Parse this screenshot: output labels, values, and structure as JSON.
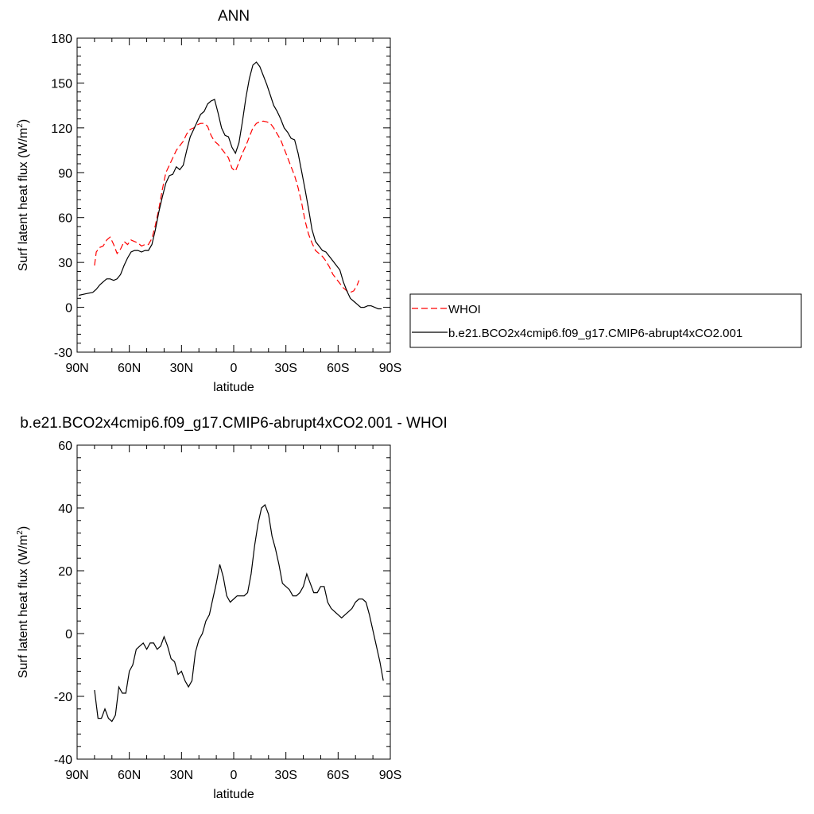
{
  "chart_data": [
    {
      "type": "line",
      "title": "ANN",
      "xlabel": "latitude",
      "ylabel": "Surf latent heat flux (W/m",
      "ylabel_sup": "2",
      "ylabel_tail": ")",
      "xlim": [
        90,
        -90
      ],
      "ylim": [
        -30,
        180
      ],
      "x_ticks": [
        90,
        60,
        30,
        0,
        -30,
        -60,
        -90
      ],
      "x_tick_labels": [
        "90N",
        "60N",
        "30N",
        "0",
        "30S",
        "60S",
        "90S"
      ],
      "y_ticks": [
        -30,
        0,
        30,
        60,
        90,
        120,
        150,
        180
      ],
      "y_tick_labels": [
        "-30",
        "0",
        "30",
        "60",
        "90",
        "120",
        "150",
        "180"
      ],
      "legend_position": "right",
      "series": [
        {
          "name": "WHOI",
          "color": "#ff0000",
          "dash": "dashed",
          "points": [
            [
              80,
              28
            ],
            [
              79,
              37
            ],
            [
              77,
              40
            ],
            [
              75,
              41
            ],
            [
              73,
              45
            ],
            [
              71,
              47
            ],
            [
              69,
              42
            ],
            [
              67,
              36
            ],
            [
              65,
              39
            ],
            [
              63,
              44
            ],
            [
              61,
              42
            ],
            [
              59,
              45
            ],
            [
              57,
              44
            ],
            [
              55,
              43
            ],
            [
              53,
              41
            ],
            [
              51,
              42
            ],
            [
              49,
              42
            ],
            [
              47,
              46
            ],
            [
              45,
              55
            ],
            [
              43,
              66
            ],
            [
              41,
              79
            ],
            [
              39,
              90
            ],
            [
              37,
              95
            ],
            [
              35,
              100
            ],
            [
              33,
              105
            ],
            [
              31,
              108
            ],
            [
              29,
              111
            ],
            [
              27,
              116
            ],
            [
              25,
              119
            ],
            [
              23,
              120
            ],
            [
              21,
              122
            ],
            [
              19,
              123
            ],
            [
              17,
              123
            ],
            [
              15,
              121
            ],
            [
              13,
              115
            ],
            [
              11,
              111
            ],
            [
              9,
              109
            ],
            [
              7,
              106
            ],
            [
              5,
              103
            ],
            [
              3,
              100
            ],
            [
              1,
              93
            ],
            [
              -1,
              91
            ],
            [
              -3,
              97
            ],
            [
              -5,
              103
            ],
            [
              -7,
              108
            ],
            [
              -9,
              114
            ],
            [
              -11,
              120
            ],
            [
              -13,
              123
            ],
            [
              -15,
              124
            ],
            [
              -17,
              124.5
            ],
            [
              -19,
              124
            ],
            [
              -21,
              123
            ],
            [
              -23,
              120
            ],
            [
              -25,
              116
            ],
            [
              -27,
              112
            ],
            [
              -29,
              106
            ],
            [
              -31,
              100
            ],
            [
              -33,
              94
            ],
            [
              -35,
              88
            ],
            [
              -37,
              80
            ],
            [
              -39,
              70
            ],
            [
              -41,
              58
            ],
            [
              -43,
              49
            ],
            [
              -45,
              43
            ],
            [
              -47,
              38
            ],
            [
              -49,
              36
            ],
            [
              -51,
              34
            ],
            [
              -53,
              31
            ],
            [
              -55,
              27
            ],
            [
              -57,
              22
            ],
            [
              -59,
              19
            ],
            [
              -61,
              16
            ],
            [
              -63,
              13
            ],
            [
              -65,
              11
            ],
            [
              -67,
              10
            ],
            [
              -69,
              11
            ],
            [
              -71,
              15
            ],
            [
              -72,
              18
            ]
          ]
        },
        {
          "name": "b.e21.BCO2x4cmip6.f09_g17.CMIP6-abrupt4xCO2.001",
          "color": "#000000",
          "dash": "solid",
          "points": [
            [
              89,
              8
            ],
            [
              85,
              9
            ],
            [
              81,
              10
            ],
            [
              79,
              12
            ],
            [
              77,
              15
            ],
            [
              75,
              17
            ],
            [
              73,
              19
            ],
            [
              71,
              19
            ],
            [
              69,
              18
            ],
            [
              67,
              19
            ],
            [
              65,
              22
            ],
            [
              63,
              28
            ],
            [
              61,
              33
            ],
            [
              59,
              37
            ],
            [
              57,
              38
            ],
            [
              55,
              38
            ],
            [
              53,
              37
            ],
            [
              51,
              38
            ],
            [
              49,
              38
            ],
            [
              47,
              42
            ],
            [
              45,
              52
            ],
            [
              43,
              64
            ],
            [
              41,
              74
            ],
            [
              39,
              83
            ],
            [
              37,
              88
            ],
            [
              35,
              89
            ],
            [
              33,
              94
            ],
            [
              31,
              92
            ],
            [
              29,
              95
            ],
            [
              27,
              105
            ],
            [
              25,
              114
            ],
            [
              23,
              119
            ],
            [
              21,
              124
            ],
            [
              19,
              129
            ],
            [
              17,
              131
            ],
            [
              15,
              136
            ],
            [
              13,
              138
            ],
            [
              11,
              139
            ],
            [
              9,
              130
            ],
            [
              7,
              120
            ],
            [
              5,
              115
            ],
            [
              3,
              114
            ],
            [
              1,
              107
            ],
            [
              -1,
              103
            ],
            [
              -3,
              110
            ],
            [
              -5,
              124
            ],
            [
              -7,
              140
            ],
            [
              -9,
              153
            ],
            [
              -11,
              162
            ],
            [
              -13,
              164
            ],
            [
              -15,
              161
            ],
            [
              -17,
              155
            ],
            [
              -19,
              149
            ],
            [
              -21,
              142
            ],
            [
              -23,
              135
            ],
            [
              -25,
              131
            ],
            [
              -27,
              126
            ],
            [
              -29,
              120
            ],
            [
              -31,
              117
            ],
            [
              -33,
              113
            ],
            [
              -35,
              112
            ],
            [
              -37,
              103
            ],
            [
              -39,
              91
            ],
            [
              -41,
              79
            ],
            [
              -43,
              66
            ],
            [
              -45,
              52
            ],
            [
              -47,
              44
            ],
            [
              -49,
              41
            ],
            [
              -51,
              38
            ],
            [
              -53,
              37
            ],
            [
              -55,
              34
            ],
            [
              -57,
              31
            ],
            [
              -59,
              28
            ],
            [
              -61,
              25
            ],
            [
              -63,
              17
            ],
            [
              -65,
              11
            ],
            [
              -67,
              6
            ],
            [
              -69,
              4
            ],
            [
              -71,
              2
            ],
            [
              -73,
              0
            ],
            [
              -75,
              0
            ],
            [
              -77,
              1
            ],
            [
              -79,
              1
            ],
            [
              -81,
              0
            ],
            [
              -83,
              -1
            ],
            [
              -85,
              -1
            ]
          ]
        }
      ]
    },
    {
      "type": "line",
      "title": "b.e21.BCO2x4cmip6.f09_g17.CMIP6-abrupt4xCO2.001 - WHOI",
      "xlabel": "latitude",
      "ylabel": "Surf latent heat flux (W/m",
      "ylabel_sup": "2",
      "ylabel_tail": ")",
      "xlim": [
        90,
        -90
      ],
      "ylim": [
        -40,
        60
      ],
      "x_ticks": [
        90,
        60,
        30,
        0,
        -30,
        -60,
        -90
      ],
      "x_tick_labels": [
        "90N",
        "60N",
        "30N",
        "0",
        "30S",
        "60S",
        "90S"
      ],
      "y_ticks": [
        -40,
        -20,
        0,
        20,
        40,
        60
      ],
      "y_tick_labels": [
        "-40",
        "-20",
        "0",
        "20",
        "40",
        "60"
      ],
      "series": [
        {
          "color": "#000000",
          "dash": "solid",
          "points": [
            [
              80,
              -18
            ],
            [
              78,
              -27
            ],
            [
              76,
              -27
            ],
            [
              74,
              -24
            ],
            [
              72,
              -27
            ],
            [
              70,
              -28
            ],
            [
              68,
              -26
            ],
            [
              66,
              -17
            ],
            [
              64,
              -19
            ],
            [
              62,
              -19
            ],
            [
              60,
              -12
            ],
            [
              58,
              -10
            ],
            [
              56,
              -5
            ],
            [
              54,
              -4
            ],
            [
              52,
              -3
            ],
            [
              50,
              -5
            ],
            [
              48,
              -3
            ],
            [
              46,
              -3
            ],
            [
              44,
              -5
            ],
            [
              42,
              -4
            ],
            [
              40,
              -1
            ],
            [
              38,
              -4
            ],
            [
              36,
              -8
            ],
            [
              34,
              -9
            ],
            [
              32,
              -13
            ],
            [
              30,
              -12
            ],
            [
              28,
              -15
            ],
            [
              26,
              -17
            ],
            [
              24,
              -15
            ],
            [
              22,
              -6
            ],
            [
              20,
              -2
            ],
            [
              18,
              0
            ],
            [
              16,
              4
            ],
            [
              14,
              6
            ],
            [
              12,
              11
            ],
            [
              10,
              16
            ],
            [
              8,
              22
            ],
            [
              6,
              18
            ],
            [
              4,
              12
            ],
            [
              2,
              10
            ],
            [
              0,
              11
            ],
            [
              -2,
              12
            ],
            [
              -4,
              12
            ],
            [
              -6,
              12
            ],
            [
              -8,
              13
            ],
            [
              -10,
              19
            ],
            [
              -12,
              28
            ],
            [
              -14,
              35
            ],
            [
              -16,
              40
            ],
            [
              -18,
              41
            ],
            [
              -20,
              38
            ],
            [
              -22,
              31
            ],
            [
              -24,
              27
            ],
            [
              -26,
              22
            ],
            [
              -28,
              16
            ],
            [
              -30,
              15
            ],
            [
              -32,
              14
            ],
            [
              -34,
              12
            ],
            [
              -36,
              12
            ],
            [
              -38,
              13
            ],
            [
              -40,
              15
            ],
            [
              -42,
              19
            ],
            [
              -44,
              16
            ],
            [
              -46,
              13
            ],
            [
              -48,
              13
            ],
            [
              -50,
              15
            ],
            [
              -52,
              15
            ],
            [
              -54,
              10
            ],
            [
              -56,
              8
            ],
            [
              -58,
              7
            ],
            [
              -60,
              6
            ],
            [
              -62,
              5
            ],
            [
              -64,
              6
            ],
            [
              -66,
              7
            ],
            [
              -68,
              8
            ],
            [
              -70,
              10
            ],
            [
              -72,
              11
            ],
            [
              -74,
              11
            ],
            [
              -76,
              10
            ],
            [
              -78,
              6
            ],
            [
              -80,
              1
            ],
            [
              -82,
              -4
            ],
            [
              -84,
              -9
            ],
            [
              -86,
              -15
            ]
          ]
        }
      ]
    }
  ]
}
